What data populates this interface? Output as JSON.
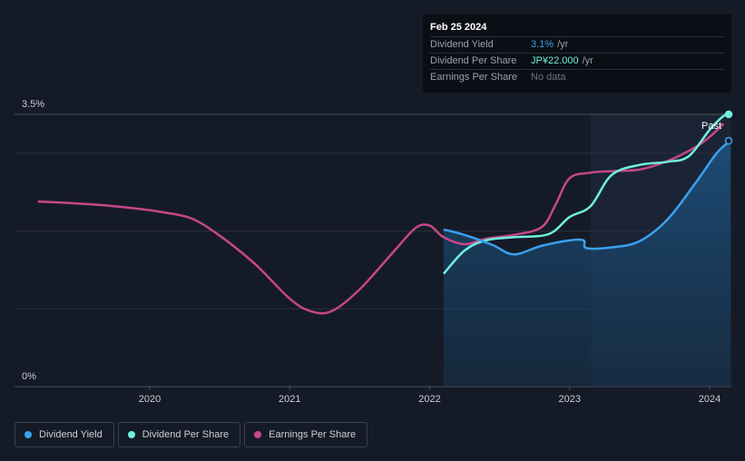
{
  "chart_data": {
    "type": "line",
    "y_axis": {
      "top_label": "3.5%",
      "bottom_label": "0%",
      "ylim": [
        0,
        3.5
      ]
    },
    "x_ticks": [
      "2020",
      "2021",
      "2022",
      "2023",
      "2024"
    ],
    "xlim": [
      2019.2,
      2024.15
    ],
    "past_label": "Past",
    "forecast_region_start": 2023.15,
    "series": [
      {
        "name": "Earnings Per Share",
        "color": "#c7468a",
        "x": [
          2019.2,
          2019.6,
          2019.9,
          2020.1,
          2020.3,
          2020.5,
          2020.75,
          2021.0,
          2021.15,
          2021.3,
          2021.5,
          2021.75,
          2021.9,
          2022.0,
          2022.1,
          2022.25,
          2022.4,
          2022.6,
          2022.8,
          2022.9,
          2023.0,
          2023.15,
          2023.3,
          2023.5,
          2023.7,
          2023.9,
          2024.0,
          2024.1
        ],
        "values": [
          2.38,
          2.34,
          2.29,
          2.24,
          2.16,
          1.94,
          1.58,
          1.13,
          0.97,
          0.97,
          1.25,
          1.75,
          2.04,
          2.07,
          1.92,
          1.83,
          1.9,
          1.95,
          2.05,
          2.34,
          2.68,
          2.75,
          2.77,
          2.79,
          2.9,
          3.08,
          3.21,
          3.38
        ]
      },
      {
        "name": "Dividend Per Share",
        "color": "#6ff0dc",
        "x": [
          2022.1,
          2022.25,
          2022.4,
          2022.6,
          2022.85,
          2023.0,
          2023.15,
          2023.3,
          2023.5,
          2023.7,
          2023.85,
          2024.0,
          2024.1,
          2024.15
        ],
        "values": [
          1.45,
          1.75,
          1.88,
          1.92,
          1.96,
          2.18,
          2.32,
          2.72,
          2.85,
          2.89,
          2.96,
          3.3,
          3.48,
          3.5
        ]
      },
      {
        "name": "Dividend Yield",
        "color": "#3aa0f0",
        "x": [
          2022.1,
          2022.25,
          2022.45,
          2022.6,
          2022.8,
          2023.0,
          2023.1,
          2023.12,
          2023.3,
          2023.5,
          2023.7,
          2023.9,
          2024.05,
          2024.15
        ],
        "values": [
          2.02,
          1.95,
          1.82,
          1.7,
          1.81,
          1.88,
          1.88,
          1.78,
          1.79,
          1.87,
          2.15,
          2.62,
          3.0,
          3.16
        ]
      }
    ]
  },
  "tooltip": {
    "date": "Feb 25 2024",
    "rows": [
      {
        "label": "Dividend Yield",
        "value": "3.1%",
        "unit": "/yr"
      },
      {
        "label": "Dividend Per Share",
        "value": "JP¥22.000",
        "unit": "/yr"
      },
      {
        "label": "Earnings Per Share",
        "value": "No data"
      }
    ]
  },
  "legend": {
    "items": [
      {
        "label": "Dividend Yield",
        "color": "#3aa0f0"
      },
      {
        "label": "Dividend Per Share",
        "color": "#6ff0dc"
      },
      {
        "label": "Earnings Per Share",
        "color": "#c7468a"
      }
    ]
  }
}
